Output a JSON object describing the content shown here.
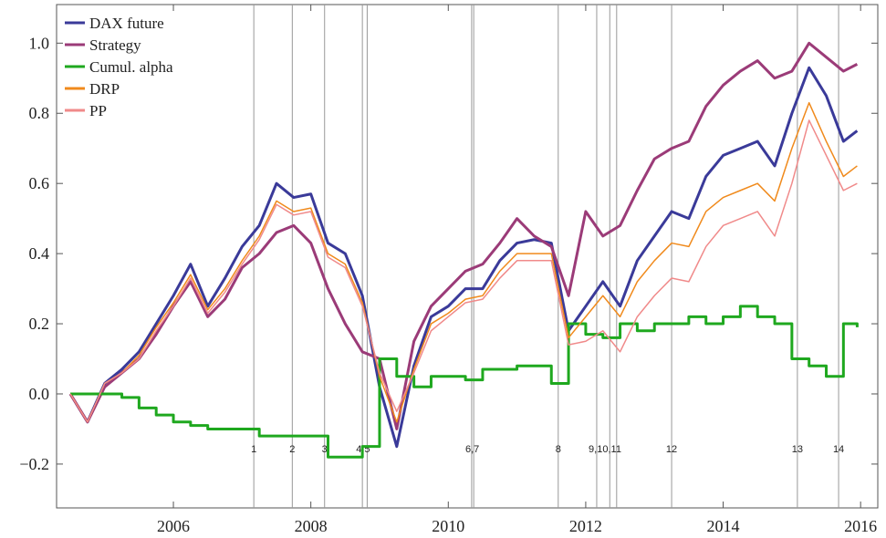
{
  "chart_data": {
    "type": "line",
    "x": [
      2004.5,
      2004.75,
      2005,
      2005.25,
      2005.5,
      2005.75,
      2006,
      2006.25,
      2006.5,
      2006.75,
      2007,
      2007.25,
      2007.5,
      2007.75,
      2008,
      2008.25,
      2008.5,
      2008.75,
      2009,
      2009.25,
      2009.5,
      2009.75,
      2010,
      2010.25,
      2010.5,
      2010.75,
      2011,
      2011.25,
      2011.5,
      2011.75,
      2012,
      2012.25,
      2012.5,
      2012.75,
      2013,
      2013.25,
      2013.5,
      2013.75,
      2014,
      2014.25,
      2014.5,
      2014.75,
      2015,
      2015.25,
      2015.5,
      2015.75,
      2015.95
    ],
    "series": [
      {
        "name": "DAX future",
        "color": "#3a3a99",
        "width": 3,
        "values": [
          0,
          -0.08,
          0.03,
          0.07,
          0.12,
          0.2,
          0.28,
          0.37,
          0.25,
          0.33,
          0.42,
          0.48,
          0.6,
          0.56,
          0.57,
          0.43,
          0.4,
          0.28,
          0.02,
          -0.15,
          0.08,
          0.22,
          0.25,
          0.3,
          0.3,
          0.38,
          0.43,
          0.44,
          0.43,
          0.18,
          0.25,
          0.32,
          0.25,
          0.38,
          0.45,
          0.52,
          0.5,
          0.62,
          0.68,
          0.7,
          0.72,
          0.65,
          0.8,
          0.93,
          0.85,
          0.72,
          0.75
        ]
      },
      {
        "name": "Strategy",
        "color": "#9b3b78",
        "width": 3,
        "values": [
          0,
          -0.08,
          0.02,
          0.06,
          0.1,
          0.17,
          0.25,
          0.32,
          0.22,
          0.27,
          0.36,
          0.4,
          0.46,
          0.48,
          0.43,
          0.3,
          0.2,
          0.12,
          0.1,
          -0.1,
          0.15,
          0.25,
          0.3,
          0.35,
          0.37,
          0.43,
          0.5,
          0.45,
          0.42,
          0.28,
          0.52,
          0.45,
          0.48,
          0.58,
          0.67,
          0.7,
          0.72,
          0.82,
          0.88,
          0.92,
          0.95,
          0.9,
          0.92,
          1.0,
          0.96,
          0.92,
          0.94
        ]
      },
      {
        "name": "Cumul. alpha",
        "color": "#1fa81f",
        "width": 3,
        "step": true,
        "values": [
          0,
          0,
          0,
          -0.01,
          -0.04,
          -0.06,
          -0.08,
          -0.09,
          -0.1,
          -0.1,
          -0.1,
          -0.12,
          -0.12,
          -0.12,
          -0.12,
          -0.18,
          -0.18,
          -0.15,
          0.1,
          0.05,
          0.02,
          0.05,
          0.05,
          0.04,
          0.07,
          0.07,
          0.08,
          0.08,
          0.03,
          0.2,
          0.17,
          0.16,
          0.2,
          0.18,
          0.2,
          0.2,
          0.22,
          0.2,
          0.22,
          0.25,
          0.22,
          0.2,
          0.1,
          0.08,
          0.05,
          0.2,
          0.19
        ]
      },
      {
        "name": "DRP",
        "color": "#f08a1c",
        "width": 1.5,
        "values": [
          0,
          -0.08,
          0.03,
          0.06,
          0.11,
          0.19,
          0.26,
          0.34,
          0.24,
          0.3,
          0.38,
          0.45,
          0.55,
          0.52,
          0.53,
          0.4,
          0.37,
          0.26,
          0.05,
          -0.08,
          0.07,
          0.2,
          0.23,
          0.27,
          0.28,
          0.35,
          0.4,
          0.4,
          0.4,
          0.16,
          0.22,
          0.28,
          0.22,
          0.32,
          0.38,
          0.43,
          0.42,
          0.52,
          0.56,
          0.58,
          0.6,
          0.55,
          0.7,
          0.83,
          0.72,
          0.62,
          0.65
        ]
      },
      {
        "name": "PP",
        "color": "#f08a8a",
        "width": 1.5,
        "values": [
          0,
          -0.08,
          0.03,
          0.06,
          0.1,
          0.18,
          0.25,
          0.33,
          0.23,
          0.29,
          0.37,
          0.44,
          0.54,
          0.51,
          0.52,
          0.39,
          0.36,
          0.25,
          0.06,
          -0.05,
          0.06,
          0.18,
          0.22,
          0.26,
          0.27,
          0.33,
          0.38,
          0.38,
          0.38,
          0.14,
          0.15,
          0.18,
          0.12,
          0.22,
          0.28,
          0.33,
          0.32,
          0.42,
          0.48,
          0.5,
          0.52,
          0.45,
          0.6,
          0.78,
          0.68,
          0.58,
          0.6
        ]
      }
    ],
    "event_lines": [
      2007.17,
      2007.73,
      2008.2,
      2008.75,
      2008.82,
      2010.34,
      2010.37,
      2011.6,
      2012.16,
      2012.35,
      2012.45,
      2013.25,
      2015.08,
      2015.68
    ],
    "event_labels": [
      {
        "x": 2007.17,
        "label": "1"
      },
      {
        "x": 2007.73,
        "label": "2"
      },
      {
        "x": 2008.2,
        "label": "3"
      },
      {
        "x": 2008.76,
        "label": "4,5"
      },
      {
        "x": 2010.35,
        "label": "6,7"
      },
      {
        "x": 2011.6,
        "label": "8"
      },
      {
        "x": 2012.28,
        "label": "9,10,11"
      },
      {
        "x": 2013.25,
        "label": "12"
      },
      {
        "x": 2015.08,
        "label": "13"
      },
      {
        "x": 2015.68,
        "label": "14"
      }
    ],
    "xlim": [
      2004.3,
      2016.25
    ],
    "ylim": [
      -0.325,
      1.11
    ],
    "xticks": [
      2006,
      2008,
      2010,
      2012,
      2014,
      2016
    ],
    "yticks": [
      {
        "value": -0.2,
        "label": "−0.2"
      },
      {
        "value": 0,
        "label": "0.0"
      },
      0.2,
      0.4,
      0.6,
      0.8,
      {
        "value": 1,
        "label": "1.0"
      }
    ],
    "legend": "upper left"
  }
}
